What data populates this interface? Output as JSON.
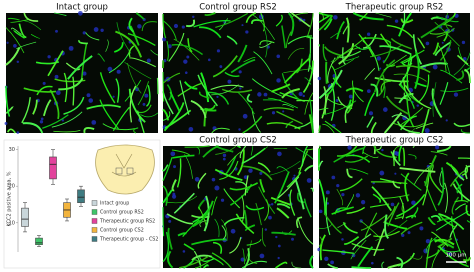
{
  "panels": [
    {
      "title": "Intact group"
    },
    {
      "title": "Control group RS2"
    },
    {
      "title": "Therapeutic group RS2"
    },
    {
      "title": "Control group CS2"
    },
    {
      "title": "Therapeutic group CS2"
    }
  ],
  "scale_bar": "100 µm",
  "chart_data": {
    "type": "box",
    "ylabel": "KCC2 positive area, %",
    "categories": [
      "Intact group",
      "Control group RS2",
      "Therapeutic group RS2",
      "Control group CS2",
      "Therapeutic group - CS2"
    ],
    "colors": [
      "#c9d6da",
      "#3fc46a",
      "#e2439c",
      "#f2b43e",
      "#3f7c82"
    ],
    "boxes": [
      {
        "min": 7.5,
        "q1": 9,
        "median": 11,
        "q3": 14,
        "max": 15.5
      },
      {
        "min": 3.5,
        "q1": 4,
        "median": 4.5,
        "q3": 5.8,
        "max": 6.5
      },
      {
        "min": 20.5,
        "q1": 22,
        "median": 26,
        "q3": 28,
        "max": 30
      },
      {
        "min": 10.5,
        "q1": 11.5,
        "median": 13.5,
        "q3": 15.5,
        "max": 16.5
      },
      {
        "min": 14.5,
        "q1": 15.5,
        "median": 17,
        "q3": 19,
        "max": 20
      }
    ],
    "ylim": [
      2,
      31
    ],
    "yticks": [
      10,
      20,
      30
    ]
  }
}
